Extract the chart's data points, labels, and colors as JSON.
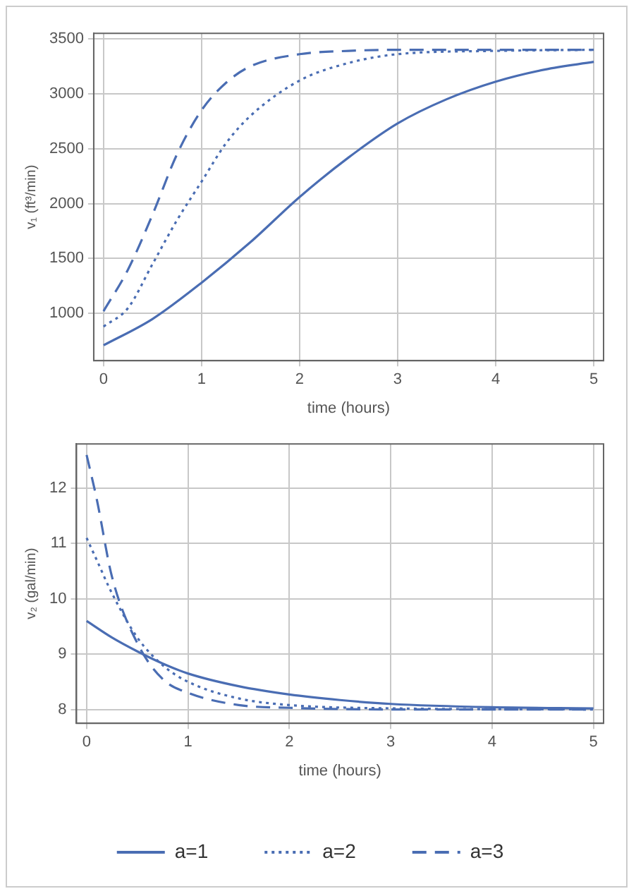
{
  "chart_data": [
    {
      "type": "line",
      "xlabel": "time (hours)",
      "ylabel": "v₁ (ft³/min)",
      "xlim": [
        -0.1,
        5.1
      ],
      "ylim": [
        570,
        3550
      ],
      "xticks": [
        0,
        1,
        2,
        3,
        4,
        5
      ],
      "yticks": [
        1000,
        1500,
        2000,
        2500,
        3000,
        3500
      ],
      "grid": true,
      "legend": false,
      "marker": "none",
      "series": [
        {
          "color": "#4a6db3",
          "line_style": "solid",
          "x": [
            0,
            0.5,
            1,
            1.5,
            2,
            2.5,
            3,
            3.5,
            4,
            4.5,
            5
          ],
          "values": [
            710,
            950,
            1280,
            1650,
            2060,
            2420,
            2730,
            2950,
            3110,
            3220,
            3290
          ]
        },
        {
          "color": "#4a6db3",
          "line_style": "dotted",
          "x": [
            0,
            0.25,
            0.5,
            0.75,
            1,
            1.25,
            1.5,
            2,
            2.5,
            3,
            4,
            5
          ],
          "values": [
            880,
            1050,
            1450,
            1850,
            2200,
            2550,
            2800,
            3120,
            3280,
            3360,
            3390,
            3400
          ]
        },
        {
          "color": "#4a6db3",
          "line_style": "dashed",
          "x": [
            0,
            0.25,
            0.5,
            0.75,
            1,
            1.25,
            1.5,
            2,
            2.5,
            3,
            5
          ],
          "values": [
            1020,
            1400,
            1900,
            2450,
            2850,
            3100,
            3250,
            3360,
            3390,
            3400,
            3400
          ]
        }
      ]
    },
    {
      "type": "line",
      "xlabel": "time (hours)",
      "ylabel": "v₂ (gal/min)",
      "xlim": [
        -0.1,
        5.1
      ],
      "ylim": [
        7.75,
        12.8
      ],
      "xticks": [
        0,
        1,
        2,
        3,
        4,
        5
      ],
      "yticks": [
        8,
        9,
        10,
        11,
        12
      ],
      "grid": true,
      "legend": "bottom",
      "marker": "none",
      "series": [
        {
          "name": "a=1",
          "color": "#4a6db3",
          "line_style": "solid",
          "x": [
            0,
            0.25,
            0.5,
            0.75,
            1,
            1.5,
            2,
            2.5,
            3,
            4,
            5
          ],
          "values": [
            9.6,
            9.3,
            9.05,
            8.83,
            8.65,
            8.42,
            8.27,
            8.17,
            8.1,
            8.04,
            8.02
          ]
        },
        {
          "name": "a=2",
          "color": "#4a6db3",
          "line_style": "dotted",
          "x": [
            0,
            0.1,
            0.25,
            0.5,
            0.75,
            1,
            1.5,
            2,
            3,
            5
          ],
          "values": [
            11.1,
            10.7,
            10.1,
            9.3,
            8.8,
            8.5,
            8.2,
            8.08,
            8.02,
            8.0
          ]
        },
        {
          "name": "a=3",
          "color": "#4a6db3",
          "line_style": "dashed",
          "x": [
            0,
            0.1,
            0.25,
            0.5,
            0.75,
            1,
            1.5,
            2,
            3,
            5
          ],
          "values": [
            12.6,
            11.8,
            10.4,
            9.2,
            8.55,
            8.3,
            8.08,
            8.03,
            8.0,
            8.0
          ]
        }
      ]
    }
  ]
}
